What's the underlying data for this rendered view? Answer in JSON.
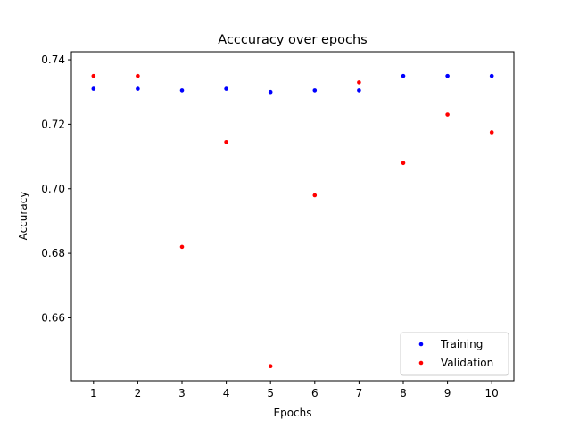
{
  "chart_data": {
    "type": "scatter",
    "title": "Acccuracy over epochs",
    "xlabel": "Epochs",
    "ylabel": "Accuracy",
    "xlim": [
      0.5,
      10.5
    ],
    "ylim": [
      0.6405,
      0.7425
    ],
    "xticks": [
      "1",
      "2",
      "3",
      "4",
      "5",
      "6",
      "7",
      "8",
      "9",
      "10"
    ],
    "yticks": [
      "0.66",
      "0.68",
      "0.70",
      "0.72",
      "0.74"
    ],
    "grid": false,
    "legend_position": "lower-right",
    "series": [
      {
        "name": "Training",
        "color": "#0000ff",
        "x": [
          1,
          2,
          3,
          4,
          5,
          6,
          7,
          8,
          9,
          10
        ],
        "y": [
          0.731,
          0.731,
          0.7305,
          0.731,
          0.73,
          0.7305,
          0.7305,
          0.735,
          0.735,
          0.735
        ]
      },
      {
        "name": "Validation",
        "color": "#ff0000",
        "x": [
          1,
          2,
          3,
          4,
          5,
          6,
          7,
          8,
          9,
          10
        ],
        "y": [
          0.735,
          0.735,
          0.682,
          0.7145,
          0.645,
          0.698,
          0.733,
          0.708,
          0.723,
          0.7175
        ]
      }
    ]
  }
}
